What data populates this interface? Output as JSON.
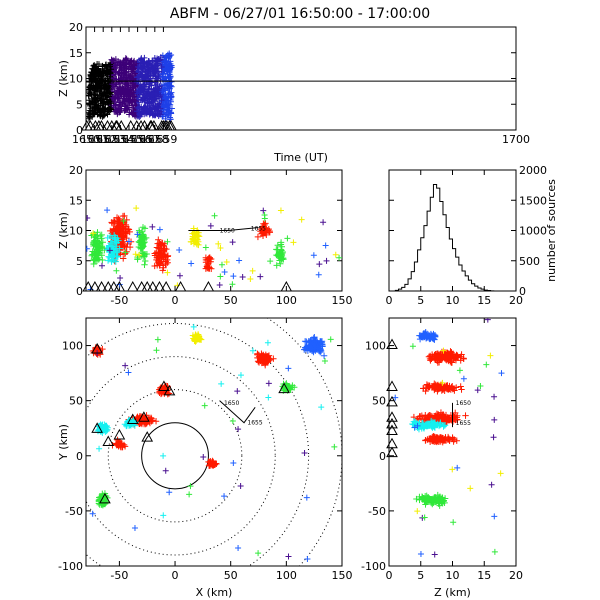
{
  "title": "ABFM - 06/27/01 16:50:00 - 17:00:00",
  "colors": {
    "rainbow": [
      "#000000",
      "#3d0078",
      "#2a1fb4",
      "#1e40e8",
      "#1f78ff",
      "#1eb6ff",
      "#19e0f0",
      "#20f0c0",
      "#29ef6a",
      "#45ee18",
      "#a4f312",
      "#e8ef12",
      "#ffd000",
      "#ff9a00",
      "#ff5c00",
      "#ff2200",
      "#ff0000"
    ],
    "cyan": "#14f0f0",
    "green": "#30e83a",
    "yellow": "#f2ee00",
    "red": "#ff1a00",
    "blue": "#2060ff",
    "purple": "#4a1090",
    "station": "#000000"
  },
  "chart_data": [
    {
      "type": "scatter",
      "name": "time-height",
      "xlabel": "Time (UT)",
      "ylabel": "Z (km)",
      "xlim": [
        1650,
        1700
      ],
      "ylim": [
        0,
        20
      ],
      "xticks": [
        1650,
        1651,
        1652,
        1653,
        1654,
        1655,
        1656,
        1657,
        1658,
        1659,
        1700
      ],
      "yticks": [
        0,
        5,
        10,
        15,
        20
      ],
      "reference_line_y": 9.5,
      "bursts": [
        {
          "t": 1650.4,
          "zmin": 2.0,
          "zmax": 12.0
        },
        {
          "t": 1651.2,
          "zmin": 3.0,
          "zmax": 13.0
        },
        {
          "t": 1651.9,
          "zmin": 2.5,
          "zmax": 12.5
        },
        {
          "t": 1652.6,
          "zmin": 3.0,
          "zmax": 13.0
        },
        {
          "t": 1653.3,
          "zmin": 3.5,
          "zmax": 14.0
        },
        {
          "t": 1653.9,
          "zmin": 3.0,
          "zmax": 13.5
        },
        {
          "t": 1654.6,
          "zmin": 3.5,
          "zmax": 14.0
        },
        {
          "t": 1655.3,
          "zmin": 3.0,
          "zmax": 13.5
        },
        {
          "t": 1656.0,
          "zmin": 2.5,
          "zmax": 13.5
        },
        {
          "t": 1656.7,
          "zmin": 3.0,
          "zmax": 14.0
        },
        {
          "t": 1657.4,
          "zmin": 3.0,
          "zmax": 13.5
        },
        {
          "t": 1658.1,
          "zmin": 2.5,
          "zmax": 14.0
        },
        {
          "t": 1658.8,
          "zmin": 2.5,
          "zmax": 14.5
        },
        {
          "t": 1659.6,
          "zmin": 2.0,
          "zmax": 15.0
        }
      ],
      "ground_markers_t": [
        1650.1,
        1650.5,
        1651.1,
        1651.5,
        1651.8,
        1652.5,
        1653.0,
        1653.5,
        1653.6,
        1654.1,
        1655.2,
        1655.9,
        1656.4,
        1656.8,
        1657.5,
        1657.6,
        1657.9,
        1658.8,
        1659.0,
        1659.2,
        1659.4,
        1659.7,
        1659.9
      ]
    },
    {
      "type": "scatter",
      "name": "x-z projection",
      "ylabel": "Z (km)",
      "xlim": [
        -80,
        150
      ],
      "ylim": [
        0,
        20
      ],
      "xticks": [
        -50,
        0,
        50,
        100,
        150
      ],
      "yticks": [
        0,
        5,
        10,
        15,
        20
      ],
      "annotations": [
        "1650",
        "1655"
      ],
      "clusters": [
        {
          "x": -50,
          "z": 9,
          "sx": 10,
          "sz": 5,
          "color": "red"
        },
        {
          "x": -12,
          "z": 6,
          "sx": 6,
          "sz": 4,
          "color": "red"
        },
        {
          "x": 30,
          "z": 4.5,
          "sx": 4,
          "sz": 2,
          "color": "red"
        },
        {
          "x": -70,
          "z": 7,
          "sx": 6,
          "sz": 4,
          "color": "green"
        },
        {
          "x": -30,
          "z": 8,
          "sx": 5,
          "sz": 4,
          "color": "green"
        },
        {
          "x": 95,
          "z": 6,
          "sx": 5,
          "sz": 2,
          "color": "green"
        },
        {
          "x": 80,
          "z": 10,
          "sx": 6,
          "sz": 2,
          "color": "red"
        },
        {
          "x": -55,
          "z": 7,
          "sx": 6,
          "sz": 3,
          "color": "cyan"
        },
        {
          "x": 18,
          "z": 9,
          "sx": 5,
          "sz": 2,
          "color": "yellow"
        }
      ],
      "ground_markers_x": [
        -78,
        -72,
        -66,
        -60,
        -55,
        -50,
        -38,
        -30,
        -25,
        -20,
        -14,
        -8,
        5,
        30,
        100
      ]
    },
    {
      "type": "bar",
      "name": "histogram",
      "ylabel": "number of sources",
      "xlim": [
        0,
        20
      ],
      "ylim": [
        0,
        2000
      ],
      "xticks": [
        0,
        5,
        10,
        15,
        20
      ],
      "yticks": [
        0,
        500,
        1000,
        1500,
        2000
      ],
      "bin_width": 0.5,
      "bins_start": [
        1.0,
        1.5,
        2.0,
        2.5,
        3.0,
        3.5,
        4.0,
        4.5,
        5.0,
        5.5,
        6.0,
        6.5,
        7.0,
        7.5,
        8.0,
        8.5,
        9.0,
        9.5,
        10.0,
        10.5,
        11.0,
        11.5,
        12.0,
        12.5,
        13.0,
        13.5,
        14.0,
        14.5,
        15.0,
        15.5,
        16.0
      ],
      "values": [
        10,
        30,
        60,
        110,
        200,
        320,
        480,
        680,
        880,
        1080,
        1320,
        1550,
        1760,
        1700,
        1480,
        1260,
        1050,
        860,
        700,
        560,
        430,
        330,
        250,
        180,
        120,
        80,
        50,
        30,
        15,
        8,
        3
      ]
    },
    {
      "type": "scatter",
      "name": "plan view",
      "xlabel": "X (km)",
      "ylabel": "Y (km)",
      "xlim": [
        -80,
        150
      ],
      "ylim": [
        -100,
        125
      ],
      "xticks": [
        -50,
        0,
        50,
        100,
        150
      ],
      "yticks": [
        -100,
        -50,
        0,
        50,
        100
      ],
      "range_rings_km": [
        30,
        60,
        90,
        120,
        150
      ],
      "ring_center": [
        0,
        0
      ],
      "annotations": [
        "1650",
        "1655"
      ],
      "clusters": [
        {
          "x": -30,
          "y": 32,
          "sx": 12,
          "sy": 5,
          "color": "red"
        },
        {
          "x": -50,
          "y": 10,
          "sx": 6,
          "sy": 4,
          "color": "red"
        },
        {
          "x": -10,
          "y": 60,
          "sx": 6,
          "sy": 5,
          "color": "red"
        },
        {
          "x": 33,
          "y": -7,
          "sx": 5,
          "sy": 4,
          "color": "red"
        },
        {
          "x": 80,
          "y": 88,
          "sx": 8,
          "sy": 6,
          "color": "red"
        },
        {
          "x": -65,
          "y": 25,
          "sx": 7,
          "sy": 5,
          "color": "cyan"
        },
        {
          "x": -40,
          "y": 30,
          "sx": 6,
          "sy": 4,
          "color": "cyan"
        },
        {
          "x": -65,
          "y": -40,
          "sx": 5,
          "sy": 7,
          "color": "green"
        },
        {
          "x": 100,
          "y": 62,
          "sx": 7,
          "sy": 4,
          "color": "green"
        },
        {
          "x": 20,
          "y": 107,
          "sx": 5,
          "sy": 4,
          "color": "yellow"
        },
        {
          "x": 125,
          "y": 100,
          "sx": 10,
          "sy": 8,
          "color": "blue"
        },
        {
          "x": -70,
          "y": 95,
          "sx": 5,
          "sy": 4,
          "color": "red"
        }
      ],
      "stations": [
        [
          -70,
          24
        ],
        [
          -60,
          12
        ],
        [
          -38,
          32
        ],
        [
          -28,
          34
        ],
        [
          -10,
          62
        ],
        [
          -5,
          58
        ],
        [
          -50,
          18
        ],
        [
          -25,
          16
        ],
        [
          98,
          60
        ],
        [
          -70,
          96
        ],
        [
          -63,
          -40
        ]
      ]
    },
    {
      "type": "scatter",
      "name": "z-y projection",
      "xlabel": "Z (km)",
      "xlim": [
        0,
        20
      ],
      "ylim": [
        -100,
        125
      ],
      "xticks": [
        0,
        5,
        10,
        15,
        20
      ],
      "yticks": [
        -100,
        -50,
        0,
        50,
        100
      ],
      "annotations": [
        "1650",
        "1655"
      ],
      "clusters": [
        {
          "z": 8,
          "y": 62,
          "sz": 3,
          "sy": 4,
          "color": "red"
        },
        {
          "z": 8,
          "y": 34,
          "sz": 4,
          "sy": 5,
          "color": "red"
        },
        {
          "z": 8,
          "y": 15,
          "sz": 3,
          "sy": 4,
          "color": "red"
        },
        {
          "z": 6,
          "y": 28,
          "sz": 3,
          "sy": 4,
          "color": "cyan"
        },
        {
          "z": 7,
          "y": -40,
          "sz": 3,
          "sy": 5,
          "color": "green"
        },
        {
          "z": 9,
          "y": 90,
          "sz": 3,
          "sy": 6,
          "color": "red"
        },
        {
          "z": 6,
          "y": 108,
          "sz": 2,
          "sy": 4,
          "color": "blue"
        }
      ]
    }
  ]
}
